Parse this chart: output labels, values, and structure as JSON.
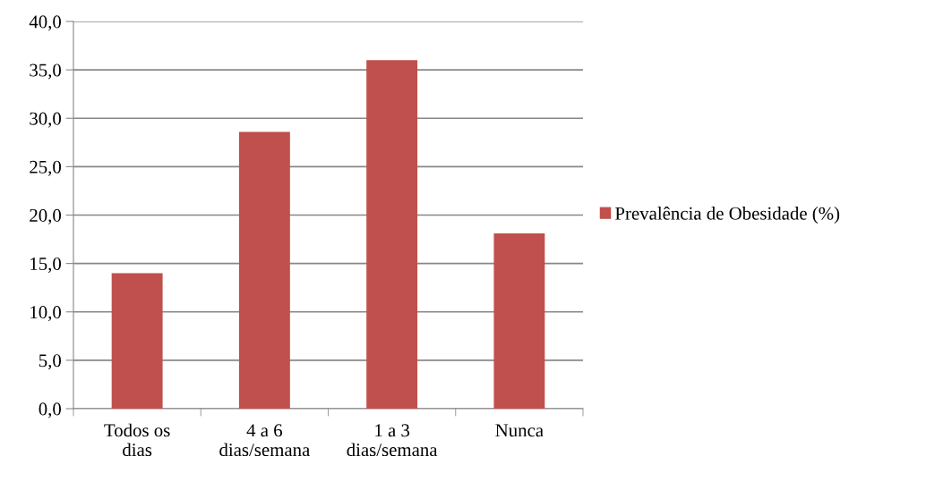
{
  "chart_data": {
    "type": "bar",
    "categories": [
      "Todos os\ndias",
      "4 a 6\ndias/semana",
      "1 a 3\ndias/semana",
      "Nunca"
    ],
    "series": [
      {
        "name": "Prevalência de Obesidade (%)",
        "color": "#c0504d",
        "values": [
          14.0,
          28.6,
          36.0,
          18.1
        ]
      }
    ],
    "ylim": [
      0,
      40
    ],
    "yticks": [
      {
        "value": 0,
        "label": "0,0"
      },
      {
        "value": 5,
        "label": "5,0"
      },
      {
        "value": 10,
        "label": "10,0"
      },
      {
        "value": 15,
        "label": "15,0"
      },
      {
        "value": 20,
        "label": "20,0"
      },
      {
        "value": 25,
        "label": "25,0"
      },
      {
        "value": 30,
        "label": "30,0"
      },
      {
        "value": 35,
        "label": "35,0"
      },
      {
        "value": 40,
        "label": "40,0"
      }
    ],
    "grid": "y",
    "legend": "right"
  }
}
